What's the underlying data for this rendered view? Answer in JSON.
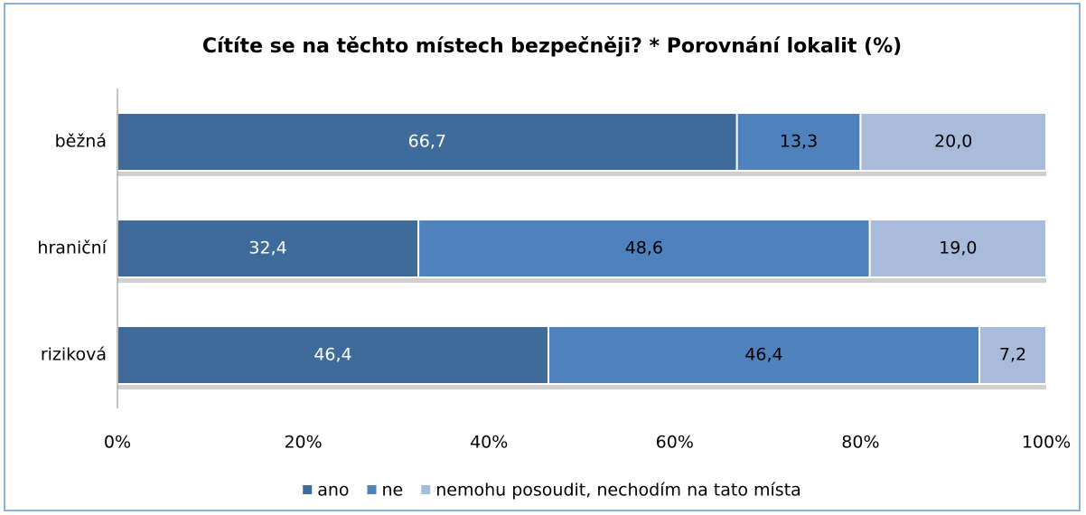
{
  "chart_data": {
    "type": "bar",
    "orientation": "horizontal",
    "stacked": true,
    "title": "Cítíte se na těchto místech bezpečněji? * Porovnání lokalit (%)",
    "categories": [
      "běžná",
      "hraniční",
      "riziková"
    ],
    "series": [
      {
        "name": "ano",
        "color": "#3f6b9b",
        "label_color": "#ffffff",
        "values": [
          66.7,
          32.4,
          46.4
        ],
        "value_labels": [
          "66,7",
          "32,4",
          "46,4"
        ]
      },
      {
        "name": "ne",
        "color": "#4f81bd",
        "label_color": "#000000",
        "values": [
          13.3,
          48.6,
          46.4
        ],
        "value_labels": [
          "13,3",
          "48,6",
          "46,4"
        ]
      },
      {
        "name": "nemohu posoudit, nechodím na tato místa",
        "color": "#a9bbda",
        "label_color": "#000000",
        "values": [
          20.0,
          19.0,
          7.2
        ],
        "value_labels": [
          "20,0",
          "19,0",
          "7,2"
        ]
      }
    ],
    "xlim": [
      0,
      100
    ],
    "xticks": [
      {
        "value": 0,
        "label": "0%"
      },
      {
        "value": 20,
        "label": "20%"
      },
      {
        "value": 40,
        "label": "40%"
      },
      {
        "value": 60,
        "label": "60%"
      },
      {
        "value": 80,
        "label": "80%"
      },
      {
        "value": 100,
        "label": "100%"
      }
    ],
    "legend": "bottom"
  }
}
